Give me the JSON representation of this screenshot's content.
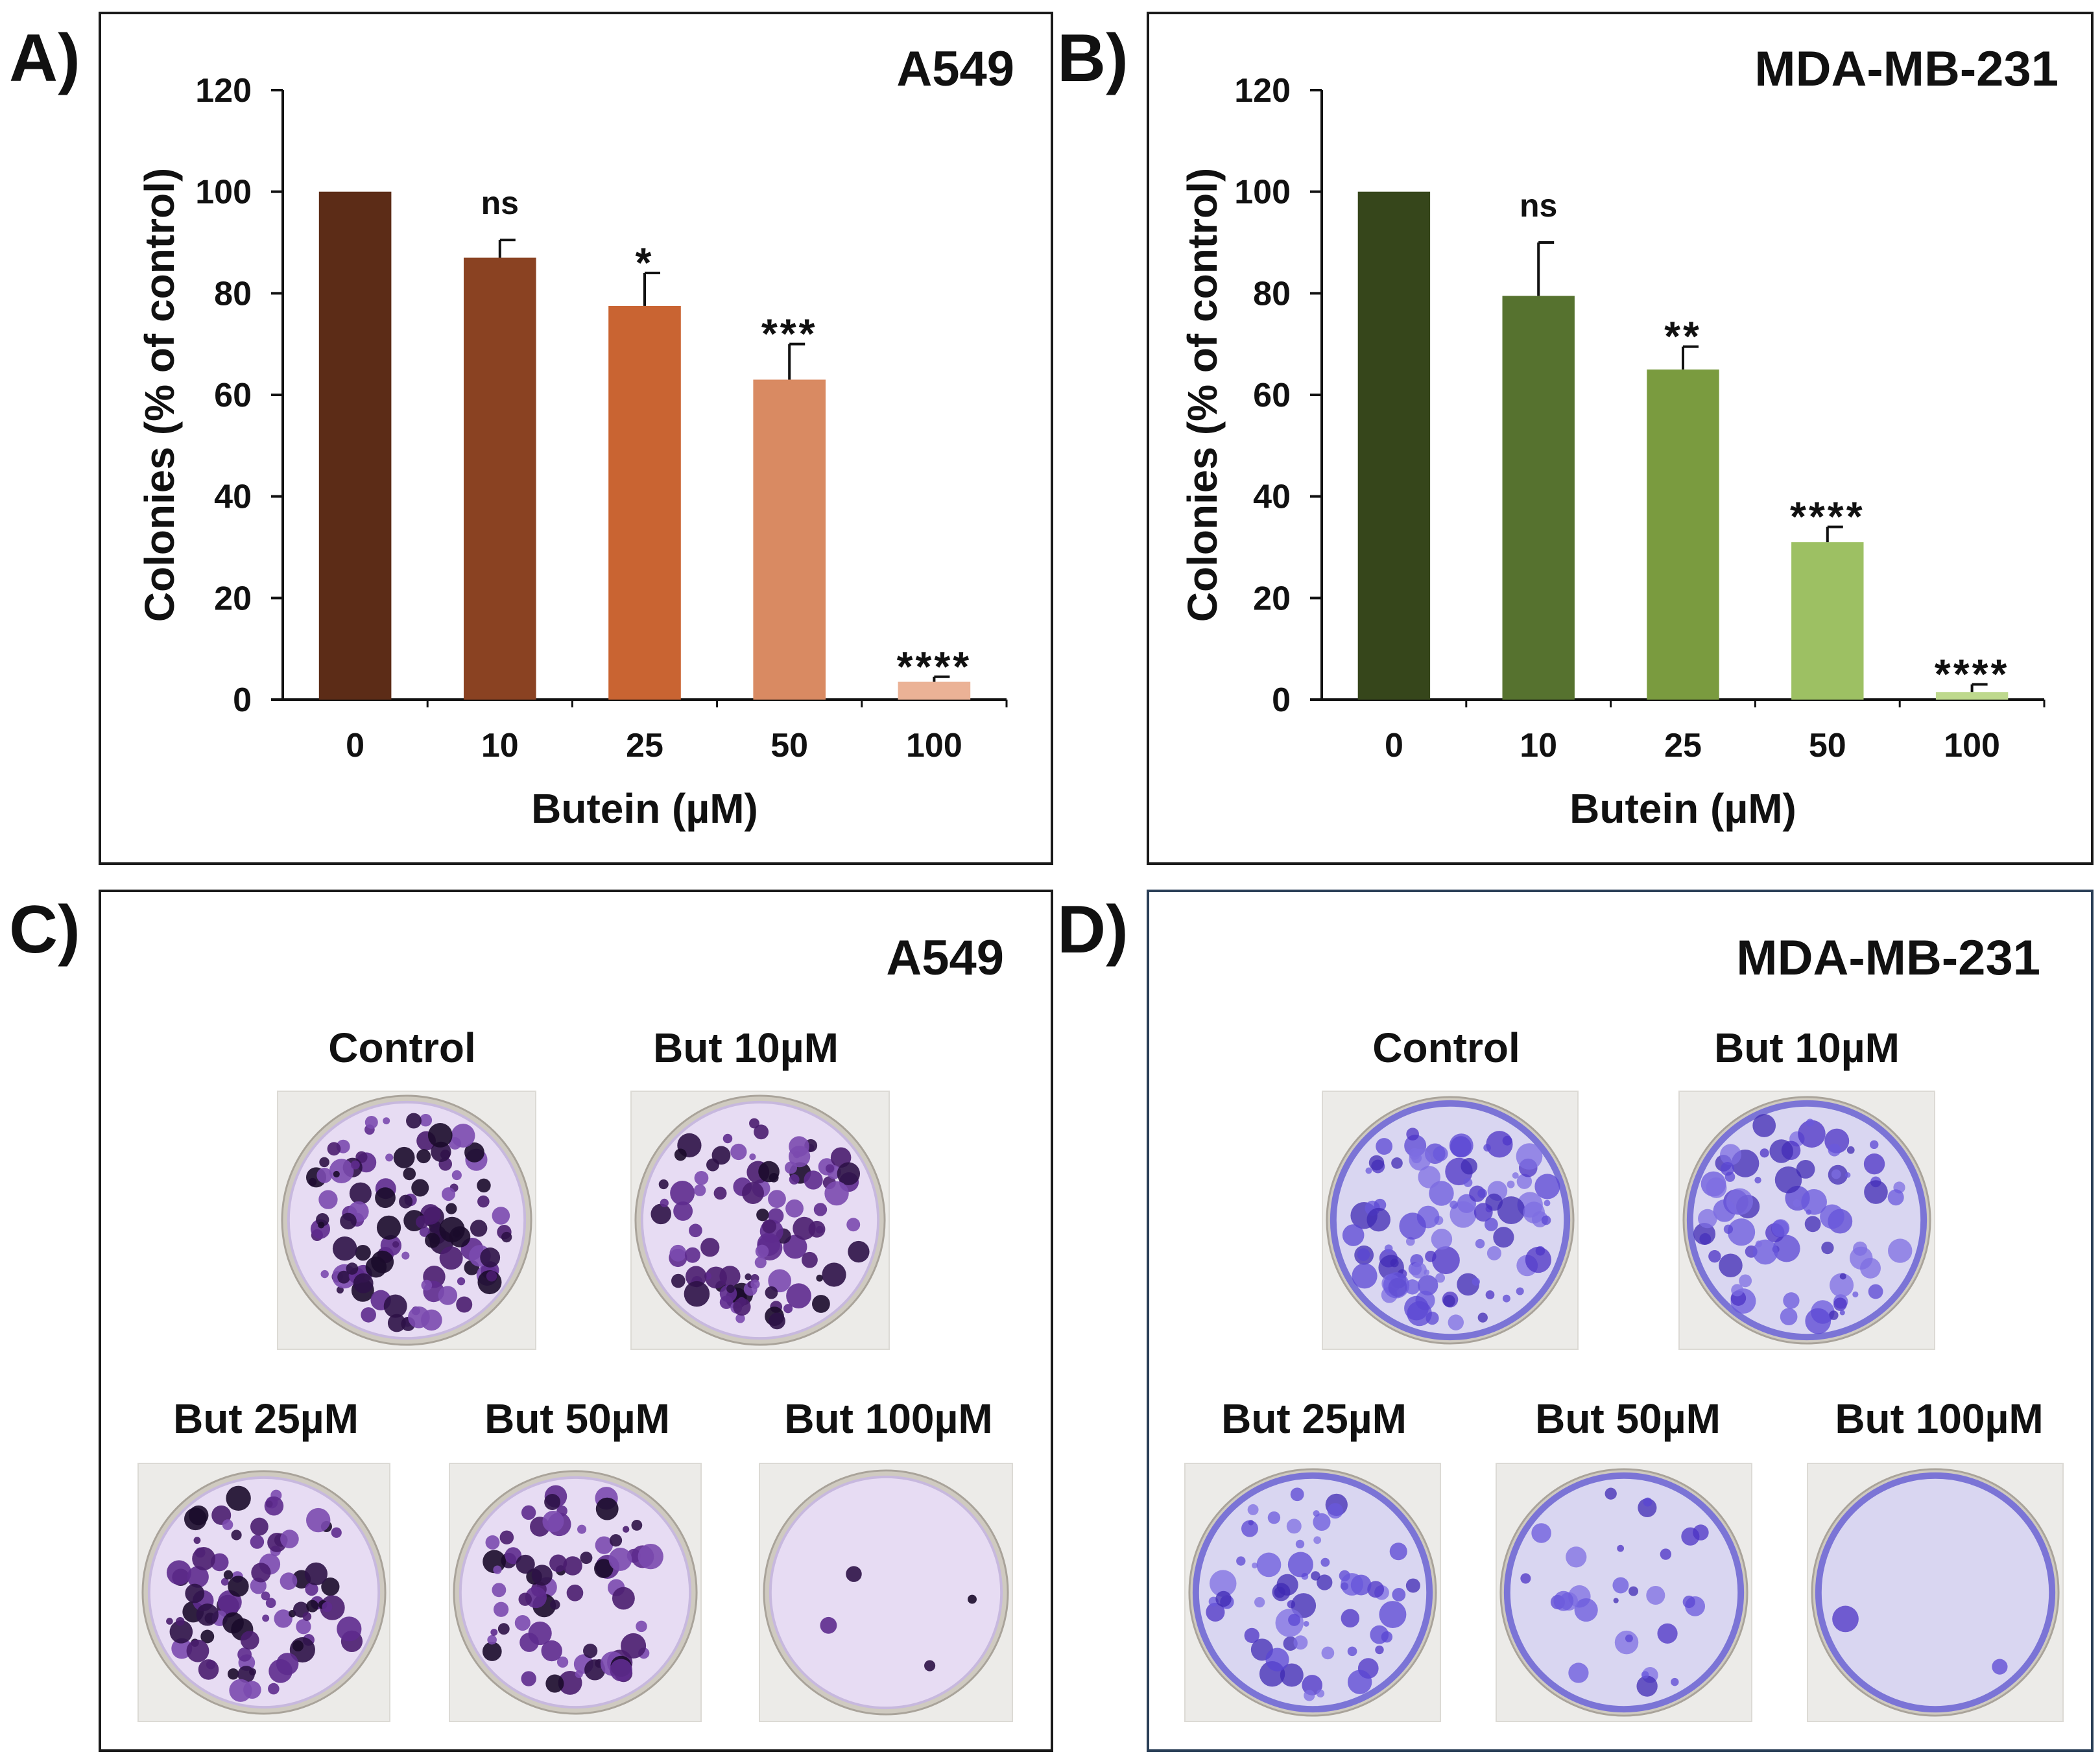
{
  "panels": {
    "a": {
      "letter": "A)"
    },
    "b": {
      "letter": "B)"
    },
    "c": {
      "letter": "C)",
      "title": "A549",
      "labels": [
        "Control",
        "But 10µM",
        "But 25µM",
        "But 50µM",
        "But 100µM"
      ],
      "colony_density": [
        1.0,
        0.87,
        0.78,
        0.63,
        0.04
      ]
    },
    "d": {
      "letter": "D)",
      "title": "MDA-MB-231",
      "labels": [
        "Control",
        "But 10µM",
        "But 25µM",
        "But 50µM",
        "But 100µM"
      ],
      "colony_density": [
        1.0,
        0.8,
        0.65,
        0.31,
        0.02
      ]
    }
  },
  "chart_data": [
    {
      "type": "bar",
      "title": "A549",
      "categories": [
        "0",
        "10",
        "25",
        "50",
        "100"
      ],
      "values": [
        100,
        87,
        77.5,
        63,
        3.5
      ],
      "errors": [
        0.3,
        3.5,
        6.5,
        7,
        1
      ],
      "significance": [
        "",
        "ns",
        "*",
        "***",
        "****"
      ],
      "bar_colors": [
        "#5c2c17",
        "#8a4222",
        "#c96432",
        "#d98a62",
        "#ebb296"
      ],
      "xlabel": "Butein (µM)",
      "ylabel": "Colonies (% of control)",
      "ylim": [
        0,
        120
      ],
      "yticks": [
        "0",
        "20",
        "40",
        "60",
        "80",
        "100",
        "120"
      ],
      "grid": false
    },
    {
      "type": "bar",
      "title": "MDA-MB-231",
      "categories": [
        "0",
        "10",
        "25",
        "50",
        "100"
      ],
      "values": [
        100,
        79.5,
        65,
        31,
        1.5
      ],
      "errors": [
        0.3,
        10.5,
        4.5,
        3,
        1.5
      ],
      "significance": [
        "",
        "ns",
        "**",
        "****",
        "****"
      ],
      "bar_colors": [
        "#36461b",
        "#56722f",
        "#7a9b3f",
        "#9dc063",
        "#bed98d"
      ],
      "xlabel": "Butein (µM)",
      "ylabel": "Colonies (% of control)",
      "ylim": [
        0,
        120
      ],
      "yticks": [
        "0",
        "20",
        "40",
        "60",
        "80",
        "100",
        "120"
      ],
      "grid": false
    }
  ]
}
